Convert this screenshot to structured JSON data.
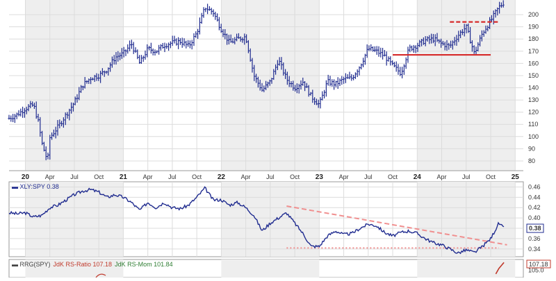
{
  "chart_data": [
    {
      "type": "bar",
      "style": "ohlc",
      "ticker": "XLY",
      "ylim": [
        72,
        212
      ],
      "yticks": [
        80,
        90,
        100,
        110,
        120,
        130,
        140,
        150,
        160,
        170,
        180,
        190,
        200
      ],
      "x_axis": {
        "start": "2019-11",
        "end": "2025-02",
        "labels": [
          {
            "date": "2020-01",
            "text": "20",
            "year": true
          },
          {
            "date": "2020-04",
            "text": "Apr"
          },
          {
            "date": "2020-07",
            "text": "Jul"
          },
          {
            "date": "2020-10",
            "text": "Oct"
          },
          {
            "date": "2021-01",
            "text": "21",
            "year": true
          },
          {
            "date": "2021-04",
            "text": "Apr"
          },
          {
            "date": "2021-07",
            "text": "Jul"
          },
          {
            "date": "2021-10",
            "text": "Oct"
          },
          {
            "date": "2022-01",
            "text": "22",
            "year": true
          },
          {
            "date": "2022-04",
            "text": "Apr"
          },
          {
            "date": "2022-07",
            "text": "Jul"
          },
          {
            "date": "2022-10",
            "text": "Oct"
          },
          {
            "date": "2023-01",
            "text": "23",
            "year": true
          },
          {
            "date": "2023-04",
            "text": "Apr"
          },
          {
            "date": "2023-07",
            "text": "Jul"
          },
          {
            "date": "2023-10",
            "text": "Oct"
          },
          {
            "date": "2024-01",
            "text": "24",
            "year": true
          },
          {
            "date": "2024-04",
            "text": "Apr"
          },
          {
            "date": "2024-07",
            "text": "Jul"
          },
          {
            "date": "2024-10",
            "text": "Oct"
          },
          {
            "date": "2025-01",
            "text": "25",
            "year": true
          }
        ]
      },
      "shaded_years": [
        [
          "2020-01",
          "2021-01"
        ],
        [
          "2022-01",
          "2023-01"
        ],
        [
          "2024-01",
          "2025-01"
        ]
      ],
      "series": [
        {
          "points": [
            {
              "x": "2019-11",
              "y": 115
            },
            {
              "x": "2019-12",
              "y": 118
            },
            {
              "x": "2020-01",
              "y": 123
            },
            {
              "x": "2020-02",
              "y": 126
            },
            {
              "x": "2020-02-20",
              "y": 111
            },
            {
              "x": "2020-03",
              "y": 95
            },
            {
              "x": "2020-03-23",
              "y": 80
            },
            {
              "x": "2020-04",
              "y": 99
            },
            {
              "x": "2020-05",
              "y": 108
            },
            {
              "x": "2020-06",
              "y": 118
            },
            {
              "x": "2020-07",
              "y": 128
            },
            {
              "x": "2020-08",
              "y": 142
            },
            {
              "x": "2020-09",
              "y": 148
            },
            {
              "x": "2020-10",
              "y": 150
            },
            {
              "x": "2020-11",
              "y": 155
            },
            {
              "x": "2020-12",
              "y": 165
            },
            {
              "x": "2021-01",
              "y": 168
            },
            {
              "x": "2021-02",
              "y": 176
            },
            {
              "x": "2021-03",
              "y": 160
            },
            {
              "x": "2021-04",
              "y": 172
            },
            {
              "x": "2021-05",
              "y": 170
            },
            {
              "x": "2021-06",
              "y": 175
            },
            {
              "x": "2021-07",
              "y": 177
            },
            {
              "x": "2021-08",
              "y": 178
            },
            {
              "x": "2021-09",
              "y": 174
            },
            {
              "x": "2021-10",
              "y": 185
            },
            {
              "x": "2021-11",
              "y": 206
            },
            {
              "x": "2021-12",
              "y": 202
            },
            {
              "x": "2022-01",
              "y": 188
            },
            {
              "x": "2022-02",
              "y": 177
            },
            {
              "x": "2022-03",
              "y": 180
            },
            {
              "x": "2022-04",
              "y": 182
            },
            {
              "x": "2022-05",
              "y": 150
            },
            {
              "x": "2022-06",
              "y": 138
            },
            {
              "x": "2022-07",
              "y": 145
            },
            {
              "x": "2022-08",
              "y": 163
            },
            {
              "x": "2022-09",
              "y": 147
            },
            {
              "x": "2022-10",
              "y": 140
            },
            {
              "x": "2022-11",
              "y": 145
            },
            {
              "x": "2022-12",
              "y": 133
            },
            {
              "x": "2023-01",
              "y": 126
            },
            {
              "x": "2023-02",
              "y": 145
            },
            {
              "x": "2023-03",
              "y": 143
            },
            {
              "x": "2023-04",
              "y": 147
            },
            {
              "x": "2023-05",
              "y": 148
            },
            {
              "x": "2023-06",
              "y": 158
            },
            {
              "x": "2023-07",
              "y": 172
            },
            {
              "x": "2023-08",
              "y": 170
            },
            {
              "x": "2023-09",
              "y": 166
            },
            {
              "x": "2023-10",
              "y": 158
            },
            {
              "x": "2023-11",
              "y": 152
            },
            {
              "x": "2023-12",
              "y": 172
            },
            {
              "x": "2024-01",
              "y": 175
            },
            {
              "x": "2024-02",
              "y": 179
            },
            {
              "x": "2024-03",
              "y": 180
            },
            {
              "x": "2024-04",
              "y": 176
            },
            {
              "x": "2024-05",
              "y": 174
            },
            {
              "x": "2024-06",
              "y": 183
            },
            {
              "x": "2024-07",
              "y": 190
            },
            {
              "x": "2024-08",
              "y": 168
            },
            {
              "x": "2024-09",
              "y": 185
            },
            {
              "x": "2024-10",
              "y": 195
            },
            {
              "x": "2024-11",
              "y": 206
            },
            {
              "x": "2024-11-20",
              "y": 210
            }
          ]
        }
      ],
      "annotations": [
        {
          "kind": "support",
          "style": "solid",
          "color": "#d62a2a",
          "from": "2023-10",
          "to": "2024-10",
          "y": 167
        },
        {
          "kind": "resistance",
          "style": "dashed",
          "color": "#d62a2a",
          "from": "2024-05",
          "to": "2024-11",
          "y": 194
        }
      ]
    },
    {
      "type": "line",
      "legend": "XLY:SPY 0.38",
      "last_value": "0.38",
      "ylim": [
        0.325,
        0.47
      ],
      "yticks": [
        0.34,
        0.36,
        0.38,
        0.4,
        0.42,
        0.44,
        0.46
      ],
      "ytick_labels": [
        "0.34",
        "0.36",
        "0.38",
        "0.40",
        "0.42",
        "0.44",
        "0.46"
      ],
      "series": [
        {
          "points": [
            {
              "x": "2019-11",
              "y": 0.41
            },
            {
              "x": "2019-12",
              "y": 0.408
            },
            {
              "x": "2020-01",
              "y": 0.41
            },
            {
              "x": "2020-02",
              "y": 0.402
            },
            {
              "x": "2020-03",
              "y": 0.405
            },
            {
              "x": "2020-04",
              "y": 0.42
            },
            {
              "x": "2020-05",
              "y": 0.425
            },
            {
              "x": "2020-06",
              "y": 0.435
            },
            {
              "x": "2020-07",
              "y": 0.445
            },
            {
              "x": "2020-08",
              "y": 0.452
            },
            {
              "x": "2020-09",
              "y": 0.455
            },
            {
              "x": "2020-10",
              "y": 0.45
            },
            {
              "x": "2020-11",
              "y": 0.44
            },
            {
              "x": "2020-12",
              "y": 0.445
            },
            {
              "x": "2021-01",
              "y": 0.44
            },
            {
              "x": "2021-02",
              "y": 0.43
            },
            {
              "x": "2021-03",
              "y": 0.415
            },
            {
              "x": "2021-04",
              "y": 0.43
            },
            {
              "x": "2021-05",
              "y": 0.42
            },
            {
              "x": "2021-06",
              "y": 0.43
            },
            {
              "x": "2021-07",
              "y": 0.42
            },
            {
              "x": "2021-08",
              "y": 0.418
            },
            {
              "x": "2021-09",
              "y": 0.425
            },
            {
              "x": "2021-10",
              "y": 0.44
            },
            {
              "x": "2021-11",
              "y": 0.458
            },
            {
              "x": "2021-12",
              "y": 0.435
            },
            {
              "x": "2022-01",
              "y": 0.435
            },
            {
              "x": "2022-02",
              "y": 0.425
            },
            {
              "x": "2022-03",
              "y": 0.43
            },
            {
              "x": "2022-04",
              "y": 0.42
            },
            {
              "x": "2022-05",
              "y": 0.405
            },
            {
              "x": "2022-06",
              "y": 0.375
            },
            {
              "x": "2022-07",
              "y": 0.39
            },
            {
              "x": "2022-08",
              "y": 0.4
            },
            {
              "x": "2022-09",
              "y": 0.41
            },
            {
              "x": "2022-10",
              "y": 0.39
            },
            {
              "x": "2022-11",
              "y": 0.37
            },
            {
              "x": "2022-12",
              "y": 0.345
            },
            {
              "x": "2023-01",
              "y": 0.345
            },
            {
              "x": "2023-02",
              "y": 0.365
            },
            {
              "x": "2023-03",
              "y": 0.375
            },
            {
              "x": "2023-04",
              "y": 0.368
            },
            {
              "x": "2023-05",
              "y": 0.37
            },
            {
              "x": "2023-06",
              "y": 0.38
            },
            {
              "x": "2023-07",
              "y": 0.388
            },
            {
              "x": "2023-08",
              "y": 0.385
            },
            {
              "x": "2023-09",
              "y": 0.372
            },
            {
              "x": "2023-10",
              "y": 0.365
            },
            {
              "x": "2023-11",
              "y": 0.372
            },
            {
              "x": "2023-12",
              "y": 0.375
            },
            {
              "x": "2024-01",
              "y": 0.37
            },
            {
              "x": "2024-02",
              "y": 0.36
            },
            {
              "x": "2024-03",
              "y": 0.352
            },
            {
              "x": "2024-04",
              "y": 0.348
            },
            {
              "x": "2024-05",
              "y": 0.34
            },
            {
              "x": "2024-06",
              "y": 0.332
            },
            {
              "x": "2024-07",
              "y": 0.338
            },
            {
              "x": "2024-08",
              "y": 0.333
            },
            {
              "x": "2024-09",
              "y": 0.345
            },
            {
              "x": "2024-10",
              "y": 0.36
            },
            {
              "x": "2024-11",
              "y": 0.39
            },
            {
              "x": "2024-11-20",
              "y": 0.38
            }
          ]
        }
      ],
      "annotations": [
        {
          "kind": "trendline",
          "style": "dashed",
          "color": "#f08f8f",
          "from": "2022-09",
          "y_from": 0.423,
          "to": "2024-12",
          "y_to": 0.348
        },
        {
          "kind": "support",
          "style": "dotted",
          "color": "#f08f8f",
          "from": "2022-09",
          "to": "2024-11",
          "y": 0.342
        }
      ]
    },
    {
      "type": "line",
      "legend": [
        {
          "text": "RRG(SPY)",
          "color": "#444444"
        },
        {
          "text": "JdK RS-Ratio 107.18",
          "color": "#c0392b"
        },
        {
          "text": "JdK RS-Mom 101.84",
          "color": "#2e7d32"
        }
      ],
      "last_value": "107.18",
      "yticks": [
        105
      ],
      "ytick_labels": [
        "105.0"
      ],
      "series": [
        {
          "name": "JdK RS-Ratio",
          "color": "#c0392b",
          "points": [
            {
              "x": "2024-10-20",
              "y": 104
            },
            {
              "x": "2024-11",
              "y": 105.5
            },
            {
              "x": "2024-11-20",
              "y": 107.18
            }
          ]
        }
      ]
    }
  ]
}
